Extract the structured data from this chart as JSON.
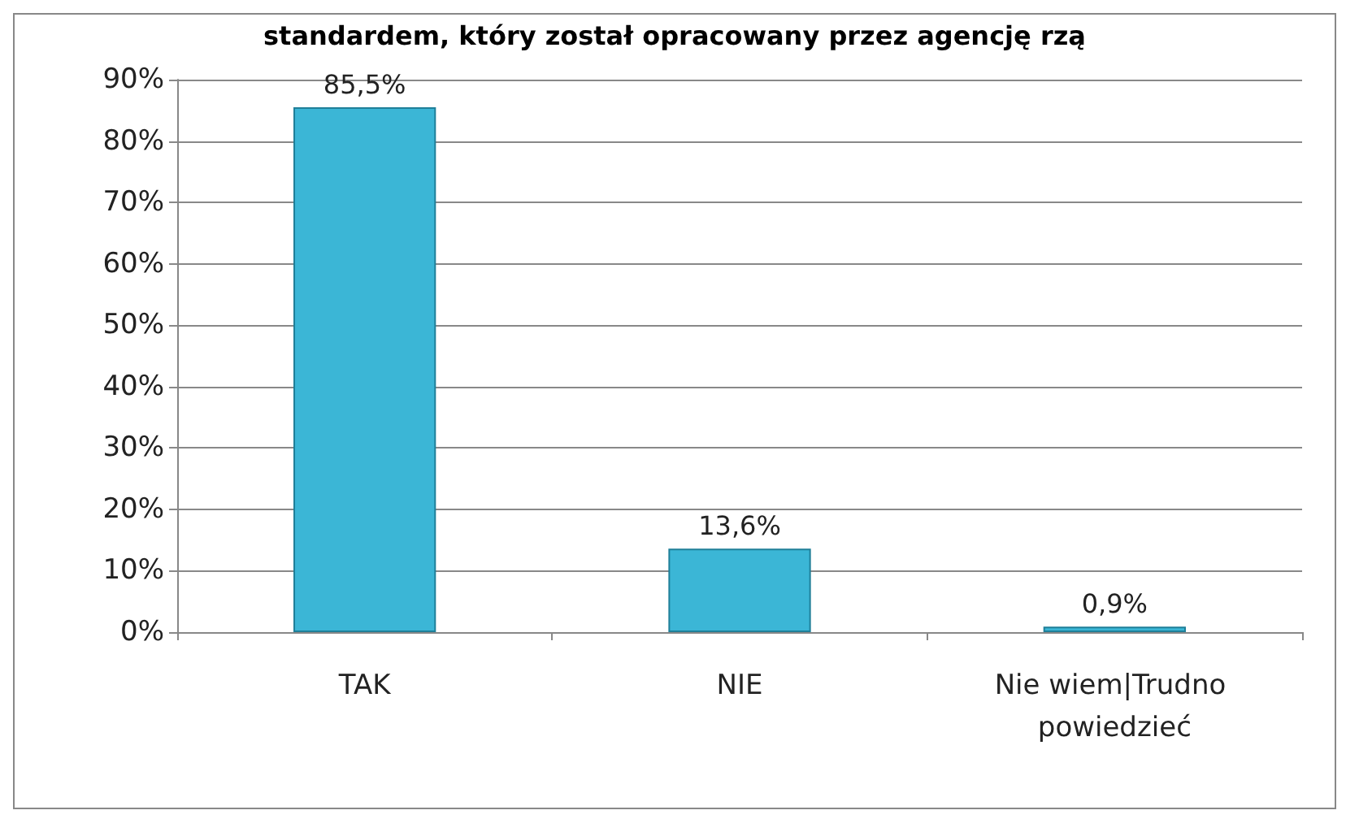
{
  "chart_data": {
    "type": "bar",
    "title": "standardem, który został opracowany przez agencję rzą",
    "categories": [
      "TAK",
      "NIE",
      "Nie wiem|Trudno powiedzieć"
    ],
    "values": [
      85.5,
      13.6,
      0.9
    ],
    "value_labels": [
      "85,5%",
      "13,6%",
      "0,9%"
    ],
    "color": "#3bb6d6",
    "ylim": [
      0,
      90
    ],
    "yticks": [
      {
        "value": 0,
        "label": "0%"
      },
      {
        "value": 10,
        "label": "10%"
      },
      {
        "value": 20,
        "label": "20%"
      },
      {
        "value": 30,
        "label": "30%"
      },
      {
        "value": 40,
        "label": "40%"
      },
      {
        "value": 50,
        "label": "50%"
      },
      {
        "value": 60,
        "label": "60%"
      },
      {
        "value": 70,
        "label": "70%"
      },
      {
        "value": 80,
        "label": "80%"
      },
      {
        "value": 90,
        "label": "90%"
      }
    ],
    "grid": "y"
  }
}
